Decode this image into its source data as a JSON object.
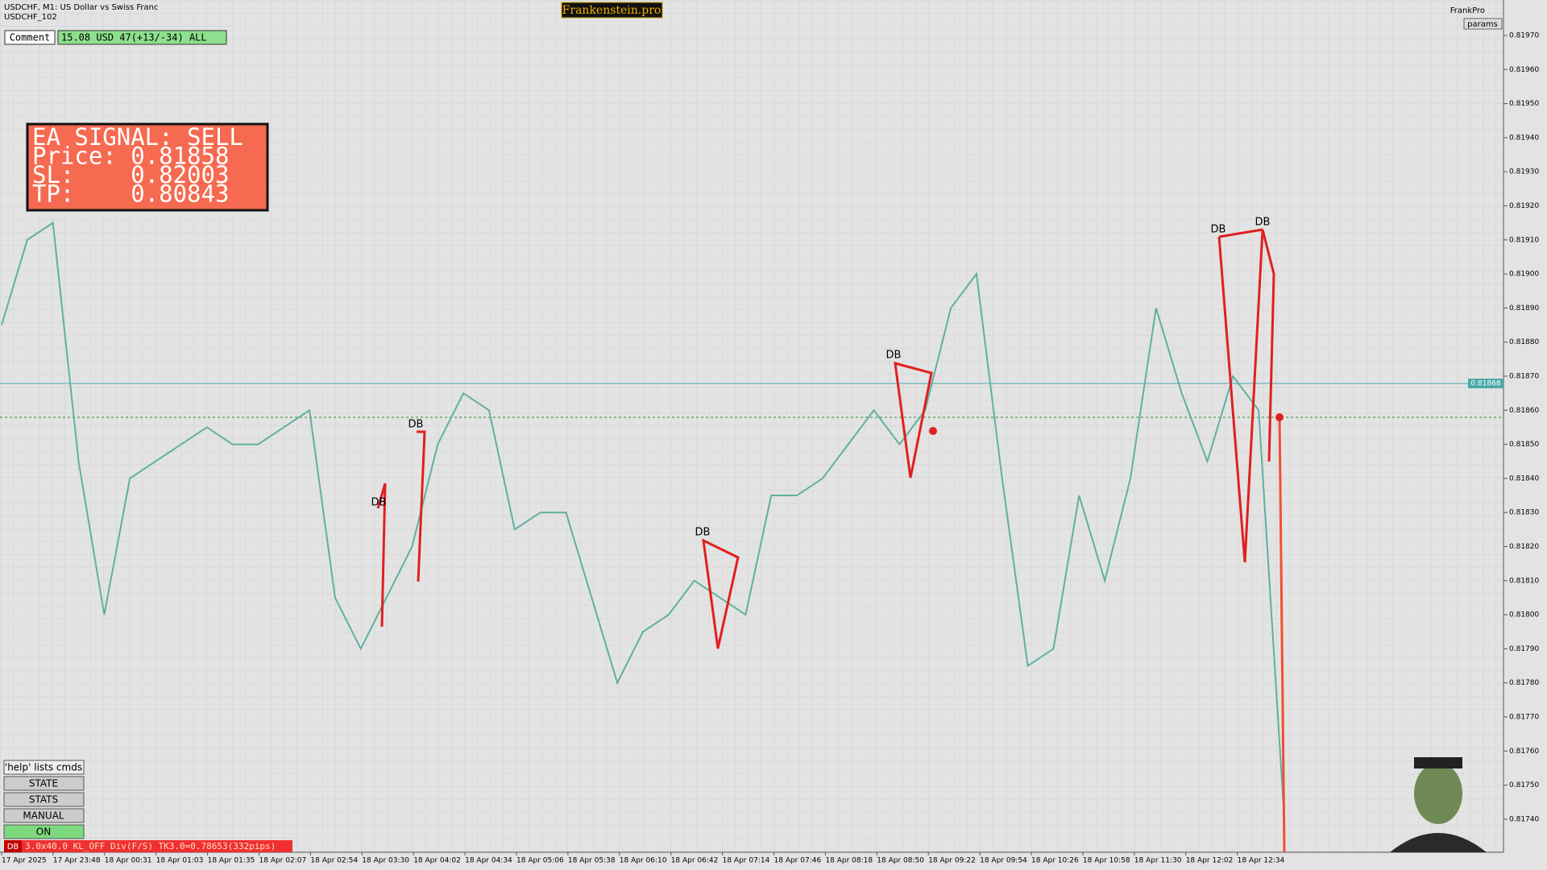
{
  "header": {
    "symbol": "USDCHF, M1:  US Dollar vs Swiss Franc",
    "account": "USDCHF_102",
    "brand": "Frankenstein.pro",
    "profile": "FrankPro",
    "params": "params"
  },
  "comment": {
    "label": "Comment",
    "value": "15.08 USD 47(+13/-34) ALL"
  },
  "signal": {
    "lines": [
      "EA SIGNAL: SELL",
      "Price: 0.81858",
      "SL:    0.82003",
      "TP:    0.80843"
    ]
  },
  "price_axis": {
    "ticks": [
      "0.81970",
      "0.81960",
      "0.81950",
      "0.81940",
      "0.81930",
      "0.81920",
      "0.81910",
      "0.81900",
      "0.81890",
      "0.81880",
      "0.81870",
      "0.81860",
      "0.81850",
      "0.81840",
      "0.81830",
      "0.81820",
      "0.81810",
      "0.81800",
      "0.81790",
      "0.81780",
      "0.81770",
      "0.81760",
      "0.81750",
      "0.81740"
    ],
    "bid": "0.81868"
  },
  "time_axis": {
    "ticks": [
      "17 Apr 2025",
      "17 Apr 23:48",
      "18 Apr 00:31",
      "18 Apr 01:03",
      "18 Apr 01:35",
      "18 Apr 02:07",
      "18 Apr 02:54",
      "18 Apr 03:30",
      "18 Apr 04:02",
      "18 Apr 04:34",
      "18 Apr 05:06",
      "18 Apr 05:38",
      "18 Apr 06:10",
      "18 Apr 06:42",
      "18 Apr 07:14",
      "18 Apr 07:46",
      "18 Apr 08:18",
      "18 Apr 08:50",
      "18 Apr 09:22",
      "18 Apr 09:54",
      "18 Apr 10:26",
      "18 Apr 10:58",
      "18 Apr 11:30",
      "18 Apr 12:02",
      "18 Apr 12:34"
    ]
  },
  "price_line": [
    0.81885,
    0.8191,
    0.81915,
    0.81845,
    0.818,
    0.8184,
    0.81845,
    0.8185,
    0.81855,
    0.8185,
    0.8185,
    0.81855,
    0.8186,
    0.81805,
    0.8179,
    0.81805,
    0.8182,
    0.8185,
    0.81865,
    0.8186,
    0.81825,
    0.8183,
    0.8183,
    0.81805,
    0.8178,
    0.81795,
    0.818,
    0.8181,
    0.81805,
    0.818,
    0.81835,
    0.81835,
    0.8184,
    0.8185,
    0.8186,
    0.8185,
    0.8186,
    0.8189,
    0.819,
    0.8184,
    0.81785,
    0.8179,
    0.81835,
    0.8181,
    0.8184,
    0.8189,
    0.81865,
    0.81845,
    0.8187,
    0.8186,
    0.8174
  ],
  "patterns": [
    "DB",
    "DB",
    "DB",
    "DB",
    "DB",
    "DB"
  ],
  "buttons": [
    "'help' lists cmds",
    "STATE",
    "STATS",
    "MANUAL",
    "ON"
  ],
  "status": {
    "tag": "DB",
    "text": "3.0x40.0 KL_OFF Div(F/S) TK3.0=0.78653(332pips)"
  }
}
